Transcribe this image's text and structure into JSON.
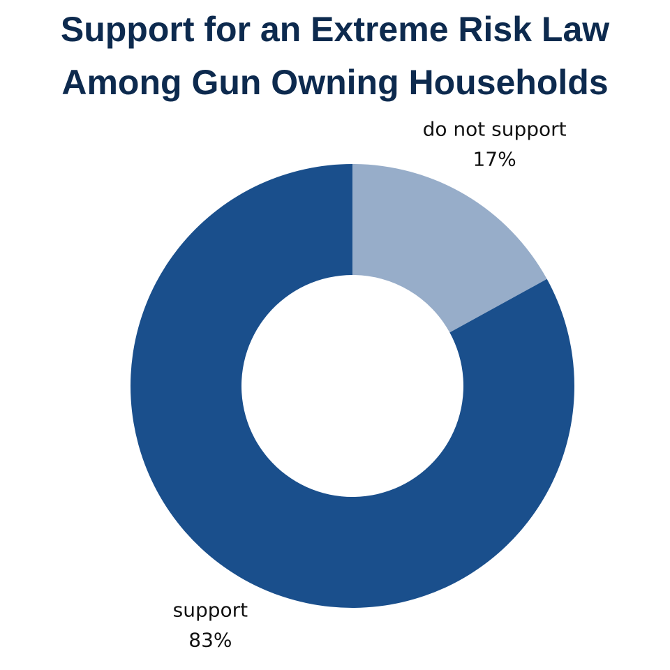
{
  "chart_data": {
    "type": "donut",
    "title": "Support for an Extreme Risk Law Among Gun Owning Households",
    "categories": [
      "do not support",
      "support"
    ],
    "values": [
      17,
      83
    ],
    "value_labels": [
      "17%",
      "83%"
    ],
    "colors": [
      "#97adc9",
      "#1a4f8c"
    ]
  }
}
